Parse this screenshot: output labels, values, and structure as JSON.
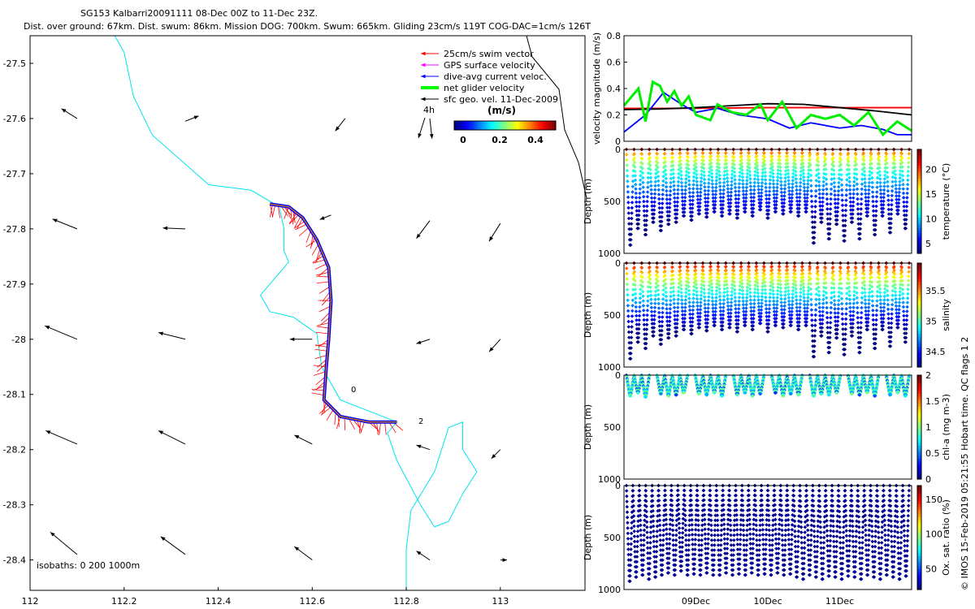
{
  "header": {
    "title": "SG153 Kalbarri20091111 08-Dec 00Z to 11-Dec 23Z.",
    "subtitle": "Dist. over ground: 67km. Dist. swum: 86km. Mission DOG: 700km. Swum: 665km. Gliding 23cm/s 119T COG-DAC=1cm/s 126T"
  },
  "side_note": "© IMOS 15-Feb-2019 05:21:55 Hobart time. QC flags 1 2",
  "map": {
    "legend": [
      {
        "label": "25cm/s swim vector",
        "color": "#ff0000"
      },
      {
        "label": "GPS surface velocity",
        "color": "#ff00ff"
      },
      {
        "label": "dive-avg current veloc.",
        "color": "#0000ff"
      },
      {
        "label": "net glider velocity",
        "color": "#00ff00"
      },
      {
        "label": "sfc geo. vel. 11-Dec-2009",
        "color": "#000000"
      }
    ],
    "scale_arrow_label": "4h",
    "colorbar": {
      "title": "(m/s)",
      "ticks": [
        "0",
        "0.2",
        "0.4"
      ]
    },
    "isobaths_label": "isobaths: 0   200  1000m",
    "track_labels": [
      "0",
      "2"
    ],
    "xticks": [
      "112",
      "112.2",
      "112.4",
      "112.6",
      "112.8",
      "113"
    ],
    "yticks": [
      "-27.5",
      "-27.6",
      "-27.7",
      "-27.8",
      "-27.9",
      "-28",
      "-28.1",
      "-28.2",
      "-28.3",
      "-28.4"
    ]
  },
  "chart_data": [
    {
      "type": "map",
      "xlim": [
        112.0,
        113.18
      ],
      "ylim": [
        -28.455,
        -27.45
      ],
      "coastline_color": "#00e5ee",
      "coastline": [
        [
          112.18,
          -27.45
        ],
        [
          112.2,
          -27.48
        ],
        [
          112.22,
          -27.56
        ],
        [
          112.26,
          -27.63
        ],
        [
          112.34,
          -27.69
        ],
        [
          112.38,
          -27.72
        ],
        [
          112.47,
          -27.73
        ],
        [
          112.53,
          -27.76
        ],
        [
          112.54,
          -27.8
        ],
        [
          112.54,
          -27.84
        ],
        [
          112.55,
          -27.86
        ],
        [
          112.49,
          -27.92
        ],
        [
          112.51,
          -27.95
        ],
        [
          112.56,
          -27.96
        ],
        [
          112.61,
          -27.99
        ],
        [
          112.62,
          -28.05
        ],
        [
          112.66,
          -28.11
        ],
        [
          112.75,
          -28.14
        ],
        [
          112.78,
          -28.15
        ],
        [
          112.76,
          -28.17
        ],
        [
          112.78,
          -28.22
        ],
        [
          112.83,
          -28.3
        ],
        [
          112.86,
          -28.34
        ],
        [
          112.89,
          -28.33
        ],
        [
          112.92,
          -28.28
        ],
        [
          112.95,
          -28.24
        ],
        [
          112.92,
          -28.2
        ],
        [
          112.92,
          -28.15
        ],
        [
          112.89,
          -28.16
        ],
        [
          112.86,
          -28.24
        ],
        [
          112.81,
          -28.31
        ],
        [
          112.8,
          -28.38
        ],
        [
          112.8,
          -28.455
        ]
      ],
      "geo_arrows": [
        {
          "lon": 112.1,
          "lat": -27.6,
          "u": -0.35,
          "v": 0.22
        },
        {
          "lon": 112.33,
          "lat": -27.605,
          "u": 0.3,
          "v": 0.12
        },
        {
          "lon": 112.67,
          "lat": -27.6,
          "u": -0.22,
          "v": -0.28
        },
        {
          "lon": 112.85,
          "lat": -27.6,
          "u": 0.05,
          "v": -0.45
        },
        {
          "lon": 112.1,
          "lat": -27.8,
          "u": -0.55,
          "v": 0.22
        },
        {
          "lon": 112.33,
          "lat": -27.8,
          "u": -0.5,
          "v": 0.02
        },
        {
          "lon": 112.64,
          "lat": -27.775,
          "u": -0.25,
          "v": -0.1
        },
        {
          "lon": 112.85,
          "lat": -27.785,
          "u": -0.3,
          "v": -0.4
        },
        {
          "lon": 113.0,
          "lat": -27.79,
          "u": -0.25,
          "v": -0.4
        },
        {
          "lon": 112.1,
          "lat": -28.0,
          "u": -0.72,
          "v": 0.3
        },
        {
          "lon": 112.33,
          "lat": -28.0,
          "u": -0.6,
          "v": 0.15
        },
        {
          "lon": 112.6,
          "lat": -28.0,
          "u": -0.5,
          "v": 0.0
        },
        {
          "lon": 112.85,
          "lat": -28.0,
          "u": -0.3,
          "v": -0.1
        },
        {
          "lon": 113.0,
          "lat": -28.0,
          "u": -0.25,
          "v": -0.28
        },
        {
          "lon": 112.1,
          "lat": -28.19,
          "u": -0.7,
          "v": 0.3
        },
        {
          "lon": 112.33,
          "lat": -28.19,
          "u": -0.6,
          "v": 0.3
        },
        {
          "lon": 112.6,
          "lat": -28.19,
          "u": -0.4,
          "v": 0.2
        },
        {
          "lon": 112.85,
          "lat": -28.2,
          "u": -0.3,
          "v": 0.1
        },
        {
          "lon": 113.0,
          "lat": -28.2,
          "u": -0.2,
          "v": -0.2
        },
        {
          "lon": 112.1,
          "lat": -28.39,
          "u": -0.6,
          "v": 0.5
        },
        {
          "lon": 112.33,
          "lat": -28.39,
          "u": -0.55,
          "v": 0.4
        },
        {
          "lon": 112.6,
          "lat": -28.4,
          "u": -0.4,
          "v": 0.3
        },
        {
          "lon": 112.85,
          "lat": -28.4,
          "u": -0.3,
          "v": 0.2
        },
        {
          "lon": 113.0,
          "lat": -28.4,
          "u": 0.15,
          "v": 0.0
        }
      ],
      "glider_track": [
        [
          112.51,
          -27.755
        ],
        [
          112.55,
          -27.76
        ],
        [
          112.58,
          -27.78
        ],
        [
          112.61,
          -27.82
        ],
        [
          112.635,
          -27.87
        ],
        [
          112.64,
          -27.93
        ],
        [
          112.635,
          -28.0
        ],
        [
          112.63,
          -28.05
        ],
        [
          112.625,
          -28.11
        ],
        [
          112.66,
          -28.14
        ],
        [
          112.72,
          -28.15
        ],
        [
          112.78,
          -28.15
        ]
      ]
    },
    {
      "type": "line",
      "ylabel": "velocity magnitude (m/s)",
      "ylim": [
        0,
        0.8
      ],
      "yticks": [
        "0",
        "0.2",
        "0.4",
        "0.6",
        "0.8"
      ],
      "xlim": [
        8.0,
        12.0
      ],
      "series": [
        {
          "color": "#ff0000",
          "x": [
            8.0,
            9.0,
            10.0,
            11.0,
            12.0
          ],
          "y": [
            0.25,
            0.25,
            0.255,
            0.255,
            0.255
          ]
        },
        {
          "color": "#000000",
          "x": [
            8.0,
            8.5,
            9.0,
            9.5,
            10.0,
            10.5,
            11.0,
            11.5,
            12.0
          ],
          "y": [
            0.24,
            0.245,
            0.255,
            0.27,
            0.285,
            0.28,
            0.255,
            0.23,
            0.2
          ]
        },
        {
          "color": "#0000ff",
          "x": [
            8.0,
            8.3,
            8.55,
            8.8,
            9.0,
            9.3,
            9.6,
            10.0,
            10.3,
            10.6,
            11.0,
            11.3,
            11.6,
            11.8,
            12.0
          ],
          "y": [
            0.07,
            0.2,
            0.37,
            0.28,
            0.22,
            0.25,
            0.2,
            0.17,
            0.1,
            0.14,
            0.1,
            0.12,
            0.09,
            0.05,
            0.05
          ]
        },
        {
          "color": "#00ee00",
          "x": [
            8.0,
            8.2,
            8.3,
            8.4,
            8.5,
            8.6,
            8.7,
            8.8,
            8.9,
            9.0,
            9.2,
            9.3,
            9.5,
            9.7,
            9.9,
            10.0,
            10.2,
            10.4,
            10.6,
            10.8,
            11.0,
            11.2,
            11.4,
            11.6,
            11.8,
            12.0
          ],
          "y": [
            0.27,
            0.4,
            0.15,
            0.45,
            0.42,
            0.3,
            0.38,
            0.27,
            0.34,
            0.2,
            0.16,
            0.28,
            0.22,
            0.2,
            0.28,
            0.16,
            0.3,
            0.1,
            0.2,
            0.17,
            0.2,
            0.12,
            0.22,
            0.05,
            0.15,
            0.08
          ]
        }
      ]
    },
    {
      "type": "scatter",
      "ylabel": "Depth (m)",
      "ylim": [
        1000,
        0
      ],
      "yticks": [
        "0",
        "500",
        "1000"
      ],
      "colorbar": {
        "label": "temperature (°C)",
        "ticks": [
          "5",
          "10",
          "15",
          "20"
        ],
        "vmin": 3,
        "vmax": 24
      },
      "dives": 37,
      "max_depths": [
        920,
        760,
        820,
        700,
        780,
        720,
        700,
        640,
        680,
        620,
        650,
        600,
        640,
        620,
        660,
        600,
        640,
        580,
        660,
        600,
        620,
        600,
        640,
        600,
        900,
        700,
        860,
        720,
        880,
        700,
        860,
        640,
        820,
        640,
        800,
        620,
        760
      ]
    },
    {
      "type": "scatter",
      "ylabel": "Depth (m)",
      "ylim": [
        1000,
        0
      ],
      "yticks": [
        "0",
        "500",
        "1000"
      ],
      "colorbar": {
        "label": "salinity",
        "ticks": [
          "34.5",
          "35",
          "35.5"
        ],
        "vmin": 34.25,
        "vmax": 35.95
      },
      "dives": 37,
      "max_depths": [
        920,
        760,
        820,
        700,
        780,
        720,
        700,
        640,
        680,
        620,
        650,
        600,
        640,
        620,
        660,
        600,
        640,
        580,
        660,
        600,
        620,
        600,
        640,
        600,
        900,
        700,
        860,
        720,
        880,
        700,
        860,
        640,
        820,
        640,
        800,
        620,
        760
      ]
    },
    {
      "type": "scatter",
      "ylabel": "Depth (m)",
      "ylim": [
        1000,
        0
      ],
      "yticks": [
        "0",
        "500",
        "1000"
      ],
      "colorbar": {
        "label": "chl-a (mg m-3)",
        "ticks": [
          "0",
          "0.5",
          "1",
          "1.5",
          "2"
        ],
        "vmin": 0,
        "vmax": 2
      },
      "dives": 37,
      "max_depths": [
        200,
        170,
        210,
        190,
        180,
        200,
        190,
        170,
        200,
        180,
        190,
        170,
        200,
        180,
        190,
        170,
        200,
        180,
        190,
        170,
        200,
        180,
        190,
        170,
        200,
        180,
        190,
        170,
        200,
        180,
        190,
        170,
        200,
        180,
        190,
        170,
        200
      ]
    },
    {
      "type": "scatter",
      "ylabel": "Depth (m)",
      "ylim": [
        1000,
        0
      ],
      "yticks": [
        "0",
        "500",
        "1000"
      ],
      "colorbar": {
        "label": "Ox. sat. ratio (%)",
        "ticks": [
          "50",
          "100",
          "150"
        ],
        "vmin": 20,
        "vmax": 170
      },
      "dives": 44,
      "xticks": [
        "09Dec",
        "10Dec",
        "11Dec"
      ],
      "max_depths": [
        920,
        880,
        860,
        900,
        880,
        860,
        840,
        860,
        820,
        860,
        850,
        860,
        840,
        860,
        860,
        840,
        860,
        850,
        860,
        840,
        860,
        850,
        860,
        840,
        860,
        850,
        880,
        900,
        860,
        880,
        900,
        870,
        880,
        900,
        870,
        880,
        900,
        860,
        880,
        900,
        860,
        880,
        900,
        870
      ]
    }
  ]
}
